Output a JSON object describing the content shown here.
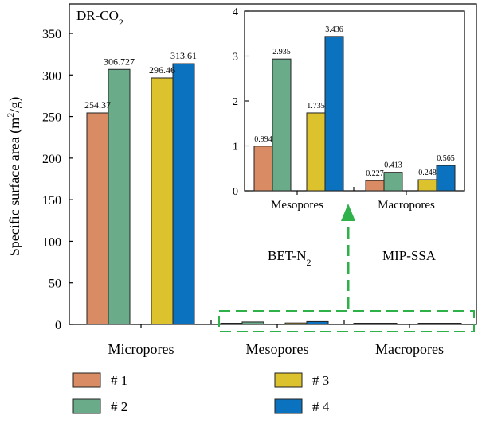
{
  "chart_data": {
    "type": "bar",
    "ylabel": "Specific surface area (m²/g)",
    "ylim": [
      0,
      370
    ],
    "yticks": [
      0,
      50,
      100,
      150,
      200,
      250,
      300,
      350
    ],
    "categories": [
      "Micropores",
      "Mesopores",
      "Macropores"
    ],
    "method_labels": [
      "DR-CO",
      "2",
      "BET-N",
      "2",
      "MIP-SSA"
    ],
    "series": [
      {
        "name": "# 1",
        "color": "#d98c63",
        "values": [
          254.37,
          0.994,
          0.227
        ]
      },
      {
        "name": "# 2",
        "color": "#6aac8a",
        "values": [
          306.727,
          2.935,
          0.413
        ]
      },
      {
        "name": "# 3",
        "color": "#dcc22c",
        "values": [
          296.46,
          1.735,
          0.248
        ]
      },
      {
        "name": "# 4",
        "color": "#0a72bf",
        "values": [
          313.61,
          3.436,
          0.565
        ]
      }
    ],
    "bar_labels": {
      "Micropores": [
        "254.37",
        "306.727",
        "296.46",
        "313.61"
      ]
    },
    "inset": {
      "categories": [
        "Mesopores",
        "Macropores"
      ],
      "ylim": [
        0,
        4
      ],
      "yticks": [
        0,
        1,
        2,
        3,
        4
      ],
      "labels": [
        [
          "0.994",
          "2.935",
          "1.735",
          "3.436"
        ],
        [
          "0.227",
          "0.413",
          "0.248",
          "0.565"
        ]
      ]
    },
    "legend": {
      "placement": "bottom",
      "entries": [
        "# 1",
        "# 2",
        "# 3",
        "# 4"
      ]
    }
  },
  "colors": {
    "arrow": "#2fb14a",
    "axis": "#000000"
  }
}
